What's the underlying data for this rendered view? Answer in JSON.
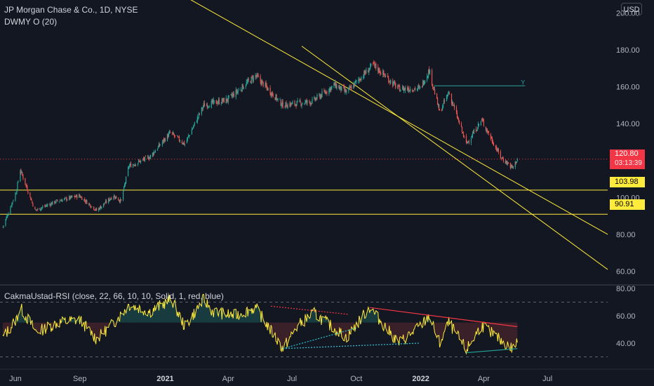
{
  "header": {
    "title": "JP Morgan Chase & Co., 1D, NYSE",
    "indicator": "DWMY O (20)",
    "currency": "USD"
  },
  "rsi_panel": {
    "legend": "CakmaUstad-RSI (close, 22, 66, 10, 10, Solid, 1, red, blue)"
  },
  "badges": {
    "last_price": "120.80",
    "countdown": "03:13:39",
    "level_high": "103.98",
    "level_low": "90.91"
  },
  "colors": {
    "background": "#131722",
    "up": "#26a69a",
    "down": "#ef5350",
    "channel": "#ffeb3b",
    "rsi_line": "#ffeb3b",
    "last_price": "#f23645",
    "horizontal_green": "#26a69a"
  },
  "annotations": {
    "green_level_label": "Y"
  },
  "chart_data": [
    {
      "type": "candlestick",
      "title": "JP Morgan Chase & Co., 1D, NYSE",
      "y_axis_ticks": [
        "200.00",
        "180.00",
        "160.00",
        "140.00",
        "120.00",
        "100.00",
        "80.00",
        "60.00"
      ],
      "ylim": [
        53,
        207
      ],
      "x_axis_ticks": [
        "Jun",
        "Sep",
        "2021",
        "Apr",
        "Jul",
        "Oct",
        "2022",
        "Apr",
        "Jul"
      ],
      "x_tick_dates": [
        "2020-06-01",
        "2020-09-01",
        "2021-01-01",
        "2021-04-01",
        "2021-07-01",
        "2021-10-01",
        "2022-01-01",
        "2022-04-01",
        "2022-07-01"
      ],
      "xlim": [
        "2020-05-10",
        "2022-09-25"
      ],
      "last_price": 120.8,
      "horizontal_levels": [
        103.98,
        90.91
      ],
      "green_level": 160.5,
      "channel_upper": [
        {
          "x": "2020-11-10",
          "y": 226
        },
        {
          "x": "2022-09-25",
          "y": 80
        }
      ],
      "channel_lower": [
        {
          "x": "2021-07-15",
          "y": 182
        },
        {
          "x": "2022-09-25",
          "y": 61
        }
      ],
      "anchors": [
        {
          "x": "2020-05-14",
          "y": 84
        },
        {
          "x": "2020-06-02",
          "y": 103
        },
        {
          "x": "2020-06-08",
          "y": 115
        },
        {
          "x": "2020-06-29",
          "y": 93
        },
        {
          "x": "2020-07-30",
          "y": 98
        },
        {
          "x": "2020-08-31",
          "y": 101
        },
        {
          "x": "2020-09-25",
          "y": 93
        },
        {
          "x": "2020-10-19",
          "y": 101
        },
        {
          "x": "2020-10-30",
          "y": 98
        },
        {
          "x": "2020-11-10",
          "y": 117
        },
        {
          "x": "2020-12-10",
          "y": 122
        },
        {
          "x": "2021-01-08",
          "y": 135
        },
        {
          "x": "2021-01-29",
          "y": 129
        },
        {
          "x": "2021-02-25",
          "y": 150
        },
        {
          "x": "2021-03-31",
          "y": 153
        },
        {
          "x": "2021-05-10",
          "y": 166
        },
        {
          "x": "2021-06-18",
          "y": 150
        },
        {
          "x": "2021-07-30",
          "y": 152
        },
        {
          "x": "2021-08-31",
          "y": 161
        },
        {
          "x": "2021-09-17",
          "y": 157
        },
        {
          "x": "2021-10-25",
          "y": 172
        },
        {
          "x": "2021-11-30",
          "y": 159
        },
        {
          "x": "2021-12-31",
          "y": 159
        },
        {
          "x": "2022-01-13",
          "y": 169
        },
        {
          "x": "2022-01-28",
          "y": 146
        },
        {
          "x": "2022-02-10",
          "y": 157
        },
        {
          "x": "2022-03-07",
          "y": 129
        },
        {
          "x": "2022-03-29",
          "y": 142
        },
        {
          "x": "2022-04-25",
          "y": 122
        },
        {
          "x": "2022-05-12",
          "y": 116
        },
        {
          "x": "2022-05-19",
          "y": 120.8
        }
      ]
    },
    {
      "type": "line",
      "title": "CakmaUstad-RSI (close, 22, 66, 10, 10, Solid, 1, red, blue)",
      "y_axis_ticks": [
        "80.00",
        "60.00",
        "40.00"
      ],
      "ylim": [
        22,
        82
      ],
      "reference_lines": [
        70,
        30
      ],
      "anchors": [
        {
          "x": "2020-05-14",
          "y": 44
        },
        {
          "x": "2020-06-02",
          "y": 57
        },
        {
          "x": "2020-06-08",
          "y": 66
        },
        {
          "x": "2020-07-01",
          "y": 48
        },
        {
          "x": "2020-08-01",
          "y": 55
        },
        {
          "x": "2020-09-01",
          "y": 57
        },
        {
          "x": "2020-09-25",
          "y": 43
        },
        {
          "x": "2020-10-20",
          "y": 55
        },
        {
          "x": "2020-11-10",
          "y": 68
        },
        {
          "x": "2020-12-10",
          "y": 63
        },
        {
          "x": "2021-01-10",
          "y": 72
        },
        {
          "x": "2021-01-29",
          "y": 52
        },
        {
          "x": "2021-02-25",
          "y": 72
        },
        {
          "x": "2021-03-10",
          "y": 63
        },
        {
          "x": "2021-04-10",
          "y": 60
        },
        {
          "x": "2021-05-10",
          "y": 66
        },
        {
          "x": "2021-06-18",
          "y": 36
        },
        {
          "x": "2021-07-10",
          "y": 53
        },
        {
          "x": "2021-08-01",
          "y": 62
        },
        {
          "x": "2021-09-17",
          "y": 44
        },
        {
          "x": "2021-10-20",
          "y": 66
        },
        {
          "x": "2021-11-30",
          "y": 40
        },
        {
          "x": "2021-12-31",
          "y": 52
        },
        {
          "x": "2022-01-13",
          "y": 60
        },
        {
          "x": "2022-01-28",
          "y": 40
        },
        {
          "x": "2022-02-10",
          "y": 55
        },
        {
          "x": "2022-03-07",
          "y": 35
        },
        {
          "x": "2022-03-29",
          "y": 53
        },
        {
          "x": "2022-04-25",
          "y": 42
        },
        {
          "x": "2022-05-12",
          "y": 36
        },
        {
          "x": "2022-05-19",
          "y": 41
        }
      ],
      "divergence_lines": [
        {
          "color": "#f23645",
          "points": [
            {
              "x": "2021-10-20",
              "y": 66
            },
            {
              "x": "2022-05-19",
              "y": 52
            }
          ]
        },
        {
          "color": "#26a69a",
          "points": [
            {
              "x": "2022-03-07",
              "y": 33
            },
            {
              "x": "2022-05-19",
              "y": 36
            }
          ]
        },
        {
          "color": "#f23645",
          "points": [
            {
              "x": "2021-06-01",
              "y": 67
            },
            {
              "x": "2021-09-20",
              "y": 61
            }
          ]
        },
        {
          "color": "#26c6da",
          "points": [
            {
              "x": "2021-06-18",
              "y": 36
            },
            {
              "x": "2021-10-01",
              "y": 51
            }
          ]
        },
        {
          "color": "#26c6da",
          "points": [
            {
              "x": "2021-06-18",
              "y": 36
            },
            {
              "x": "2021-12-31",
              "y": 40
            }
          ]
        }
      ]
    }
  ]
}
